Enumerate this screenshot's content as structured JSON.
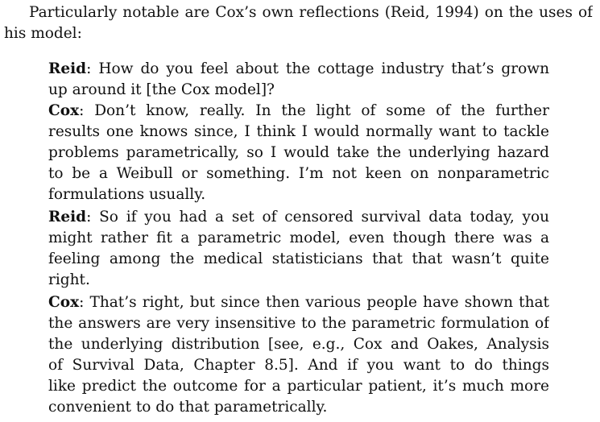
{
  "intro": {
    "line1": "Particularly notable are Cox’s own reflections (Reid, 1994) on the uses of",
    "line2": "his model:"
  },
  "dialogue": [
    {
      "speaker": "Reid",
      "lines": [
        "How do you feel about the cottage industry that’s grown",
        "up around it [the Cox model]?"
      ]
    },
    {
      "speaker": "Cox",
      "lines": [
        "Don’t know, really.  In the light of some of the further",
        "results one knows since, I think I would normally want to tackle",
        "problems parametrically, so I would take the underlying hazard",
        "to be a Weibull or something.  I’m not keen on nonparametric",
        "formulations usually."
      ]
    },
    {
      "speaker": "Reid",
      "lines": [
        "So if you had a set of censored survival data today, you",
        "might rather fit a parametric model, even though there was a",
        "feeling among the medical statisticians that that wasn’t quite",
        "right."
      ]
    },
    {
      "speaker": "Cox",
      "lines": [
        "That’s right, but since then various people have shown that",
        "the answers are very insensitive to the parametric formulation of",
        "the underlying distribution [see, e.g., Cox and Oakes, Analysis",
        "of Survival Data, Chapter 8.5].  And if you want to do things",
        "like predict the outcome for a particular patient, it’s much more",
        "convenient to do that parametrically."
      ]
    }
  ]
}
